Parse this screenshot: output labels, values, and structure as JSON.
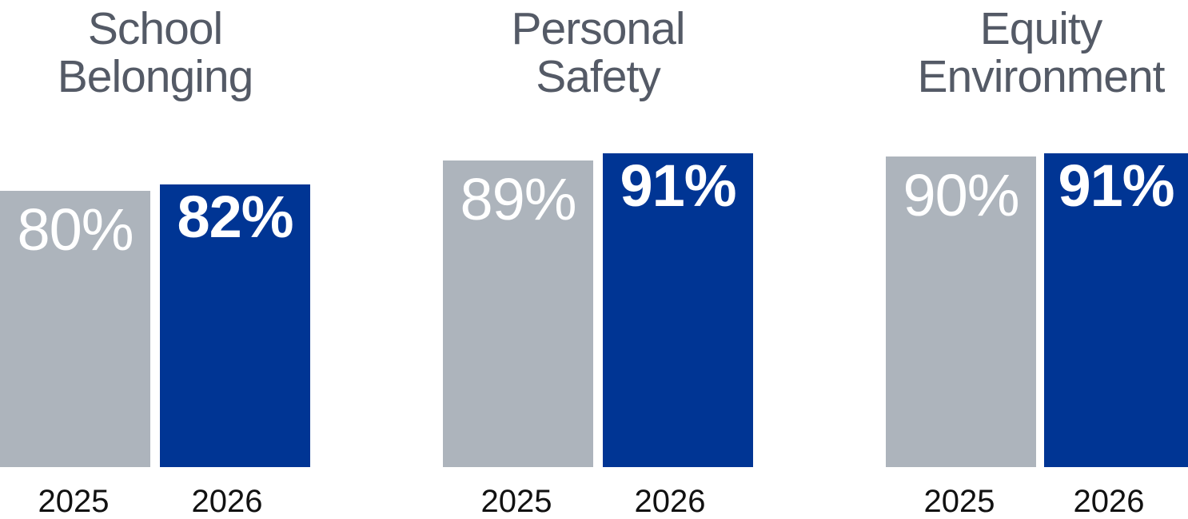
{
  "chart_data": [
    {
      "type": "bar",
      "title": [
        "School",
        "Belonging"
      ],
      "categories": [
        "2025",
        "2026"
      ],
      "values": [
        80,
        82
      ],
      "labels": [
        "80%",
        "82%"
      ],
      "ylim": [
        0,
        100
      ]
    },
    {
      "type": "bar",
      "title": [
        "Personal",
        "Safety"
      ],
      "categories": [
        "2025",
        "2026"
      ],
      "values": [
        89,
        91
      ],
      "labels": [
        "89%",
        "91%"
      ],
      "ylim": [
        0,
        100
      ]
    },
    {
      "type": "bar",
      "title": [
        "Equity",
        "Environment"
      ],
      "categories": [
        "2025",
        "2026"
      ],
      "values": [
        90,
        91
      ],
      "labels": [
        "90%",
        "91%"
      ],
      "ylim": [
        0,
        100
      ]
    }
  ],
  "colors": {
    "bar_2025": "#adb4bc",
    "bar_2026": "#003594",
    "title_text": "#545a66",
    "value_text": "#ffffff",
    "year_text": "#111111"
  }
}
